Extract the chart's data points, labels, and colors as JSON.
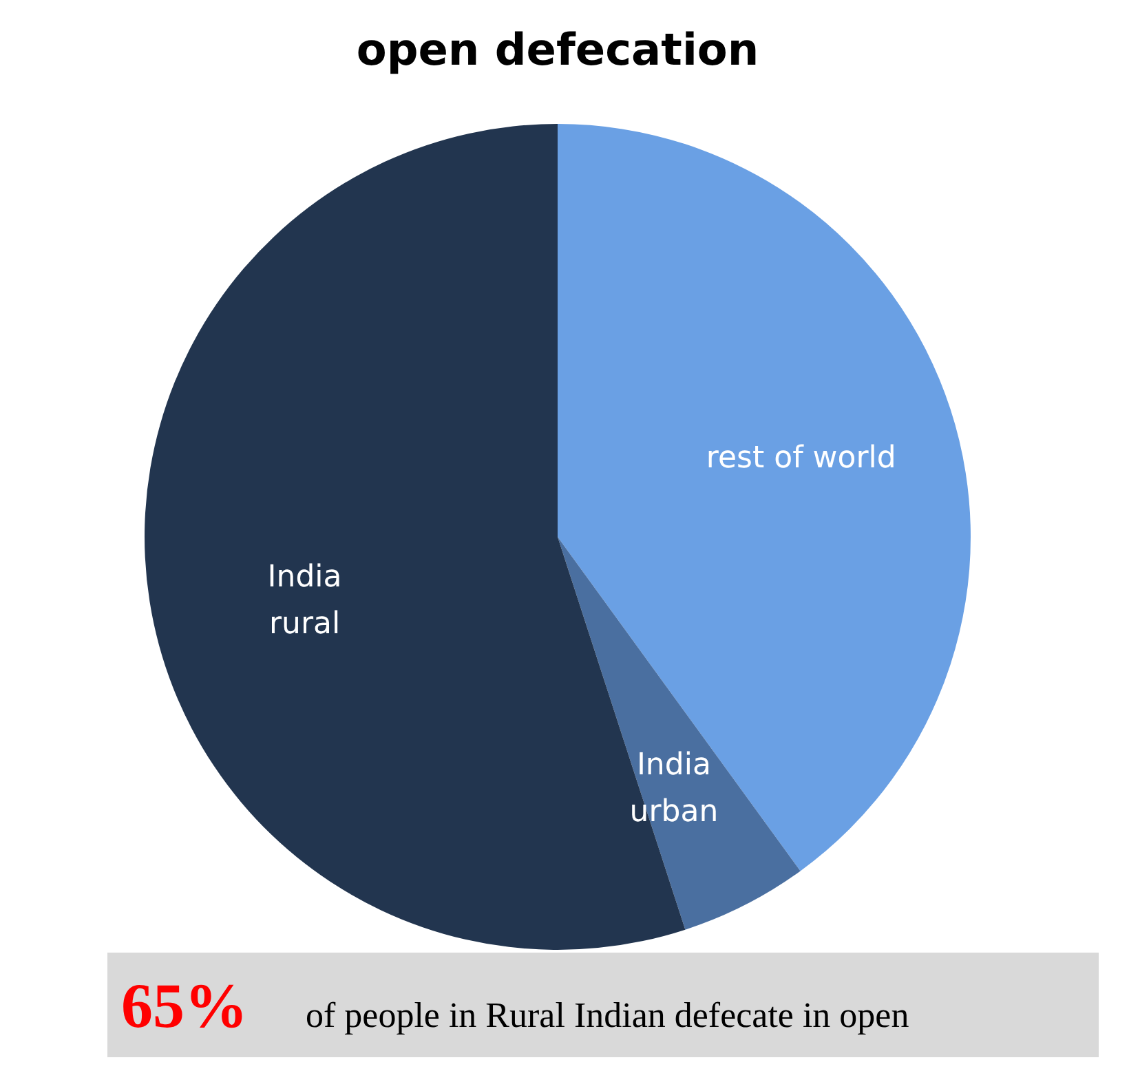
{
  "chart_data": {
    "type": "pie",
    "title": "open defecation",
    "categories": [
      "rest of world",
      "India\nurban",
      "India\nrural"
    ],
    "values": [
      40,
      5,
      55
    ],
    "colors": [
      "#6aa0e4",
      "#4a6fa0",
      "#22354f"
    ],
    "annotations": [
      "65%",
      "of people in Rural Indian defecate in open"
    ]
  }
}
